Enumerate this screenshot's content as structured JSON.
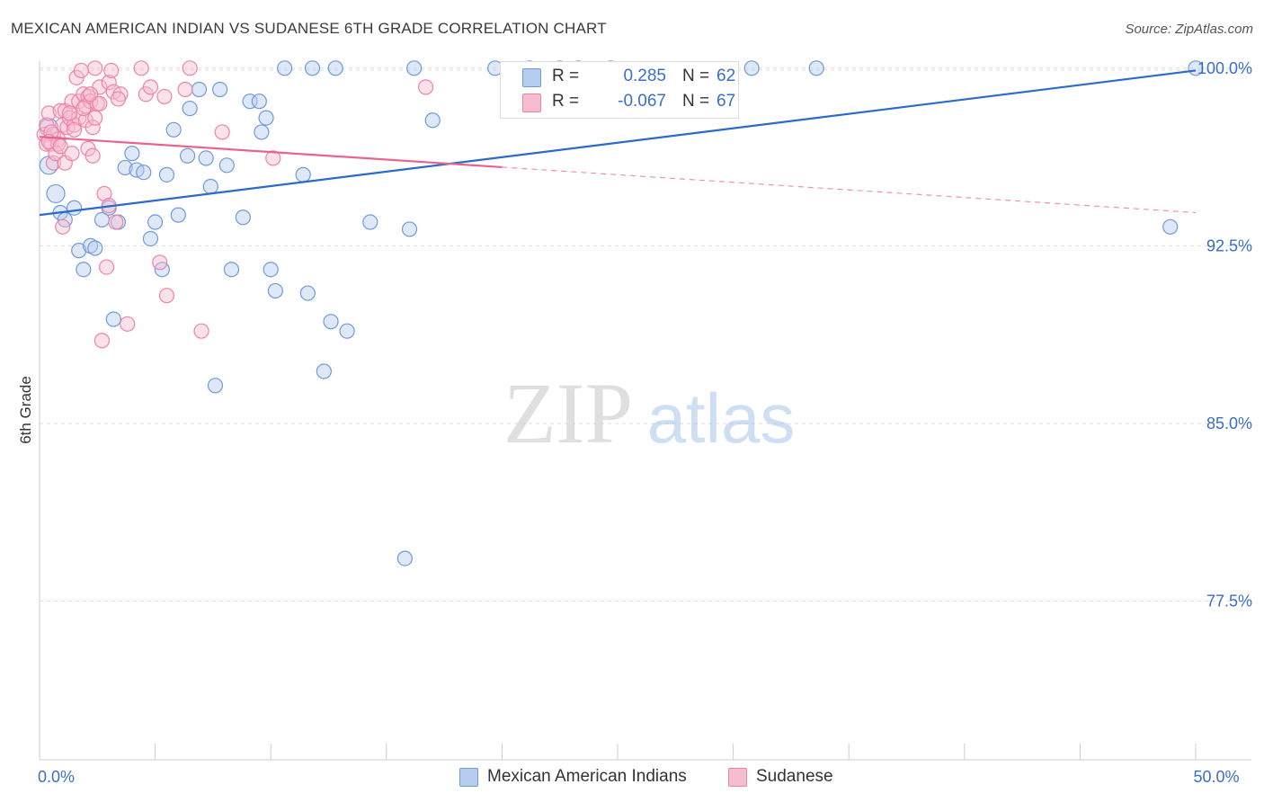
{
  "title": "MEXICAN AMERICAN INDIAN VS SUDANESE 6TH GRADE CORRELATION CHART",
  "source": "Source: ZipAtlas.com",
  "watermark": {
    "zip": "ZIP",
    "atlas": "atlas"
  },
  "legend": {
    "r_label": "R =",
    "n_label": "N =",
    "series": [
      {
        "name": "Mexican American Indians",
        "r": "0.285",
        "n": "62"
      },
      {
        "name": "Sudanese",
        "r": "-0.067",
        "n": "67"
      }
    ]
  },
  "colors": {
    "blue_fill": "#b7cdef",
    "blue_stroke": "#6f9ad8",
    "blue_line": "#2a6acb",
    "pink_fill": "#f6bcd0",
    "pink_stroke": "#ec84a8",
    "pink_line": "#e8648f",
    "axis_label": "#3a6fc4",
    "grid": "#dcdcdc"
  },
  "chart_data": {
    "type": "scatter",
    "title": "MEXICAN AMERICAN INDIAN VS SUDANESE 6TH GRADE CORRELATION CHART",
    "xlabel": "",
    "ylabel": "6th Grade",
    "xlim": [
      0,
      50
    ],
    "ylim": [
      70.8,
      100.6
    ],
    "x_tick_labels": [
      {
        "value": 0,
        "label": "0.0%"
      },
      {
        "value": 50,
        "label": "50.0%"
      }
    ],
    "x_minor_ticks": [
      0,
      5,
      10,
      15,
      20,
      25,
      30,
      35,
      40,
      45,
      50
    ],
    "y_ticks": [
      {
        "value": 100.0,
        "label": "100.0%"
      },
      {
        "value": 92.5,
        "label": "92.5%"
      },
      {
        "value": 85.0,
        "label": "85.0%"
      },
      {
        "value": 77.5,
        "label": "77.5%"
      }
    ],
    "grid": true,
    "legend_position": "top-center",
    "series": [
      {
        "name": "Mexican American Indians",
        "color": "blue",
        "r": 0.285,
        "n": 62,
        "trend": {
          "x": [
            0,
            50
          ],
          "y": [
            93.8,
            99.9
          ],
          "dashed_from": null
        },
        "points": [
          [
            0.4,
            97.5
          ],
          [
            0.4,
            95.9
          ],
          [
            0.7,
            94.7
          ],
          [
            0.9,
            93.9
          ],
          [
            1.1,
            93.6
          ],
          [
            1.5,
            94.1
          ],
          [
            1.7,
            92.3
          ],
          [
            1.9,
            91.5
          ],
          [
            2.2,
            92.5
          ],
          [
            2.4,
            92.4
          ],
          [
            2.7,
            93.6
          ],
          [
            3.0,
            94.1
          ],
          [
            3.2,
            89.4
          ],
          [
            3.4,
            93.5
          ],
          [
            3.7,
            95.8
          ],
          [
            4.0,
            96.4
          ],
          [
            4.2,
            95.7
          ],
          [
            4.5,
            95.6
          ],
          [
            4.8,
            92.8
          ],
          [
            5.0,
            93.5
          ],
          [
            5.3,
            91.5
          ],
          [
            5.5,
            95.5
          ],
          [
            5.8,
            97.4
          ],
          [
            6.0,
            93.8
          ],
          [
            6.4,
            96.3
          ],
          [
            6.5,
            98.3
          ],
          [
            6.9,
            99.1
          ],
          [
            7.2,
            96.2
          ],
          [
            7.4,
            95.0
          ],
          [
            7.6,
            86.6
          ],
          [
            7.8,
            99.1
          ],
          [
            8.1,
            95.9
          ],
          [
            8.3,
            91.5
          ],
          [
            8.8,
            93.7
          ],
          [
            9.1,
            98.6
          ],
          [
            9.5,
            98.6
          ],
          [
            9.6,
            97.3
          ],
          [
            9.8,
            97.9
          ],
          [
            10.0,
            91.5
          ],
          [
            10.2,
            90.6
          ],
          [
            10.6,
            100.0
          ],
          [
            11.4,
            95.5
          ],
          [
            11.6,
            90.5
          ],
          [
            11.8,
            100.0
          ],
          [
            12.3,
            87.2
          ],
          [
            12.6,
            89.3
          ],
          [
            12.8,
            100.0
          ],
          [
            13.3,
            88.9
          ],
          [
            14.3,
            93.5
          ],
          [
            15.8,
            79.3
          ],
          [
            16.0,
            93.2
          ],
          [
            16.2,
            100.0
          ],
          [
            17.0,
            97.8
          ],
          [
            19.7,
            100.0
          ],
          [
            21.2,
            100.0
          ],
          [
            22.5,
            100.0
          ],
          [
            23.3,
            100.0
          ],
          [
            24.7,
            100.0
          ],
          [
            30.8,
            100.0
          ],
          [
            33.6,
            100.0
          ],
          [
            48.9,
            93.3
          ],
          [
            50.0,
            100.0
          ]
        ]
      },
      {
        "name": "Sudanese",
        "color": "pink",
        "r": -0.067,
        "n": 67,
        "trend": {
          "x": [
            0,
            50
          ],
          "y": [
            97.1,
            93.9
          ],
          "solid_until": 20
        },
        "points": [
          [
            0.2,
            97.2
          ],
          [
            0.3,
            96.8
          ],
          [
            0.3,
            97.6
          ],
          [
            0.4,
            98.1
          ],
          [
            0.5,
            96.8
          ],
          [
            0.6,
            97.2
          ],
          [
            0.6,
            96.0
          ],
          [
            0.7,
            96.4
          ],
          [
            0.8,
            97.0
          ],
          [
            0.9,
            98.2
          ],
          [
            1.0,
            93.3
          ],
          [
            1.0,
            97.6
          ],
          [
            1.1,
            98.2
          ],
          [
            1.1,
            96.0
          ],
          [
            1.2,
            97.5
          ],
          [
            1.3,
            97.9
          ],
          [
            1.4,
            98.6
          ],
          [
            1.4,
            96.4
          ],
          [
            1.5,
            97.6
          ],
          [
            1.6,
            99.6
          ],
          [
            1.7,
            97.9
          ],
          [
            1.7,
            98.6
          ],
          [
            1.8,
            99.9
          ],
          [
            1.9,
            98.9
          ],
          [
            2.0,
            97.8
          ],
          [
            2.0,
            98.4
          ],
          [
            2.1,
            96.6
          ],
          [
            2.1,
            98.8
          ],
          [
            2.2,
            98.6
          ],
          [
            2.3,
            96.3
          ],
          [
            2.3,
            97.5
          ],
          [
            2.4,
            100.0
          ],
          [
            2.5,
            98.5
          ],
          [
            2.6,
            99.2
          ],
          [
            2.7,
            88.5
          ],
          [
            2.8,
            94.7
          ],
          [
            2.9,
            91.6
          ],
          [
            3.0,
            99.4
          ],
          [
            3.0,
            94.2
          ],
          [
            3.1,
            99.9
          ],
          [
            3.2,
            99.0
          ],
          [
            3.3,
            93.5
          ],
          [
            3.5,
            98.9
          ],
          [
            3.8,
            89.2
          ],
          [
            4.4,
            100.0
          ],
          [
            4.6,
            98.9
          ],
          [
            4.8,
            99.2
          ],
          [
            5.2,
            91.8
          ],
          [
            5.4,
            98.8
          ],
          [
            5.5,
            90.4
          ],
          [
            6.3,
            99.1
          ],
          [
            6.5,
            100.0
          ],
          [
            7.0,
            88.9
          ],
          [
            7.9,
            97.3
          ],
          [
            10.1,
            96.2
          ],
          [
            16.7,
            99.2
          ],
          [
            0.5,
            97.3
          ],
          [
            0.8,
            96.8
          ],
          [
            1.3,
            98.1
          ],
          [
            1.9,
            98.3
          ],
          [
            2.2,
            98.9
          ],
          [
            2.6,
            98.5
          ],
          [
            0.4,
            96.9
          ],
          [
            1.5,
            97.4
          ],
          [
            3.4,
            98.7
          ],
          [
            0.9,
            96.7
          ],
          [
            2.4,
            97.9
          ]
        ]
      }
    ]
  }
}
